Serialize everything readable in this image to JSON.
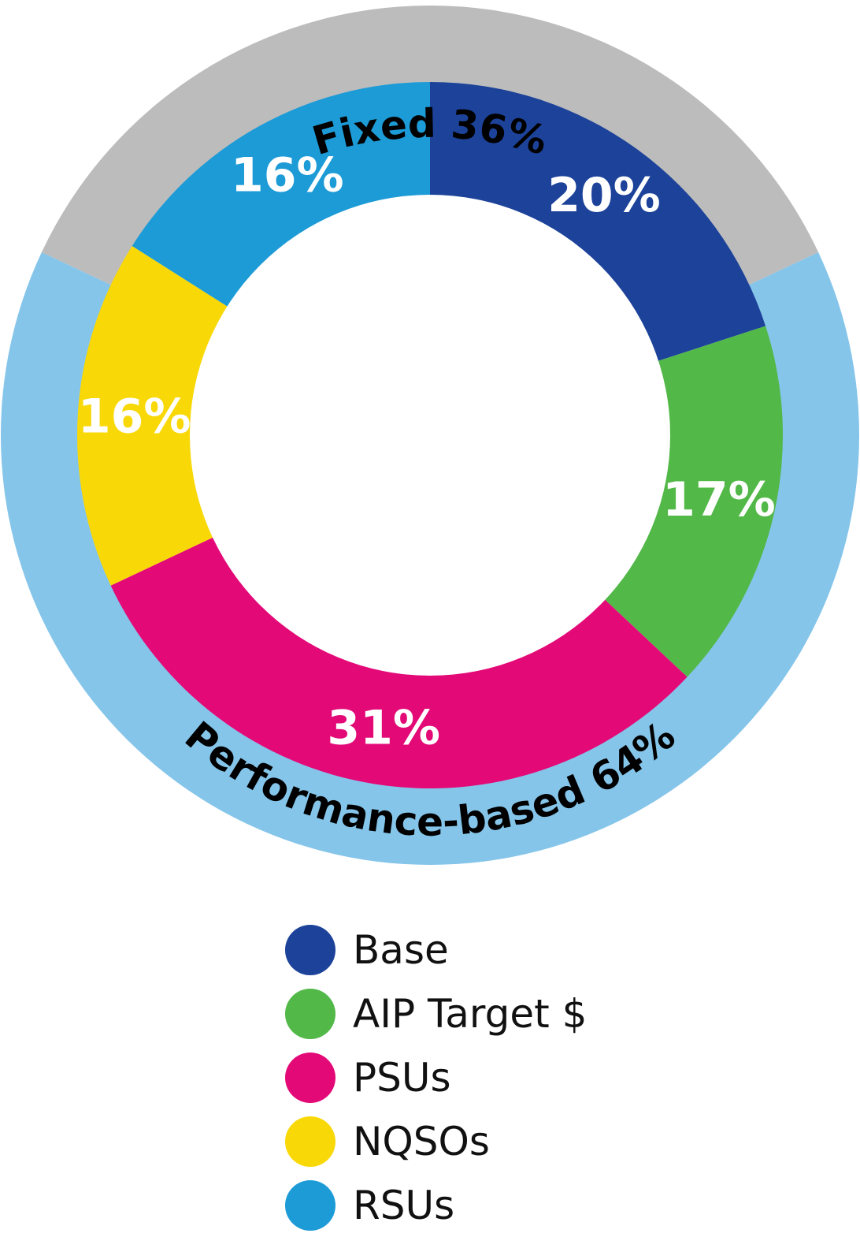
{
  "chart_data": {
    "type": "pie",
    "variant": "nested-donut",
    "title": "",
    "inner_ring": {
      "slices": [
        {
          "name": "Base",
          "value": 20,
          "label": "20%",
          "color": "#1c429a"
        },
        {
          "name": "AIP Target $",
          "value": 17,
          "label": "17%",
          "color": "#52b848"
        },
        {
          "name": "PSUs",
          "value": 31,
          "label": "31%",
          "color": "#e30a78"
        },
        {
          "name": "NQSOs",
          "value": 16,
          "label": "16%",
          "color": "#f9d808"
        },
        {
          "name": "RSUs",
          "value": 16,
          "label": "16%",
          "color": "#1c9bd7"
        }
      ]
    },
    "outer_ring": {
      "segments": [
        {
          "name": "Fixed",
          "value": 36,
          "label": "Fixed 36%",
          "color": "#bcbcbc"
        },
        {
          "name": "Performance-based",
          "value": 64,
          "label": "Performance-based 64%",
          "color": "#85c5ea"
        }
      ]
    },
    "legend": {
      "placement": "bottom",
      "entries": [
        {
          "label": "Base",
          "color": "#1c429a"
        },
        {
          "label": "AIP Target $",
          "color": "#52b848"
        },
        {
          "label": "PSUs",
          "color": "#e30a78"
        },
        {
          "label": "NQSOs",
          "color": "#f9d808"
        },
        {
          "label": "RSUs",
          "color": "#1c9bd7"
        }
      ]
    }
  }
}
